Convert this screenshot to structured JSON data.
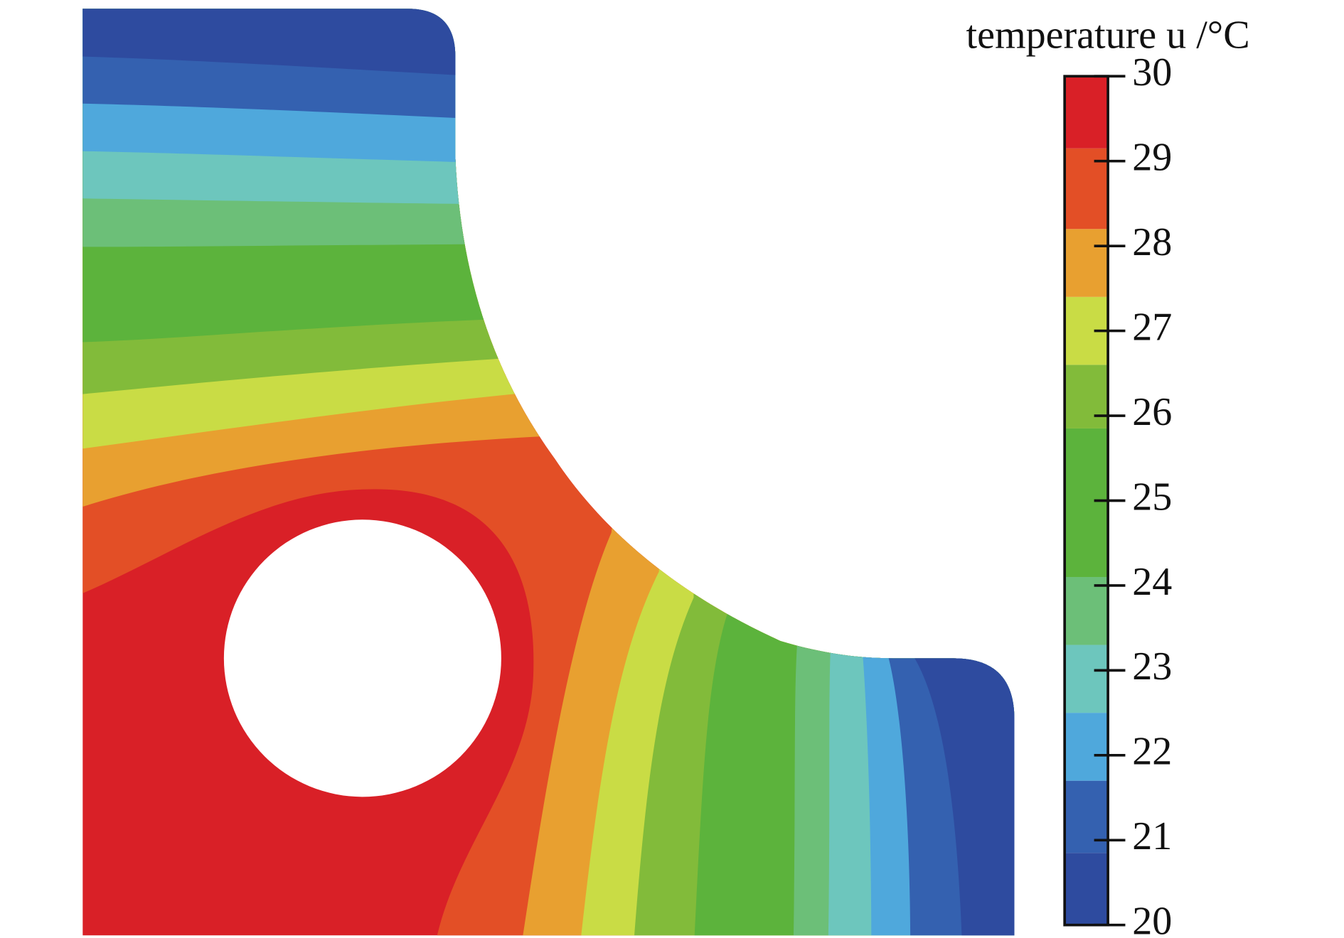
{
  "chart_data": {
    "type": "contour",
    "colorbar": {
      "label": "temperature u /°C",
      "lim": [
        20,
        30
      ],
      "ticks": [
        20,
        21,
        22,
        23,
        24,
        25,
        26,
        27,
        28,
        29,
        30
      ],
      "levels": [
        20,
        20.85,
        21.7,
        22.5,
        23.3,
        24.1,
        25.85,
        26.6,
        27.4,
        28.2,
        29.15,
        30
      ],
      "colors": [
        "#2e4b9f",
        "#3461b0",
        "#4fa8dc",
        "#6dc6bd",
        "#6cbf78",
        "#5cb33c",
        "#82bb3a",
        "#c9dc45",
        "#e8a030",
        "#e34f26",
        "#d92027"
      ]
    }
  }
}
